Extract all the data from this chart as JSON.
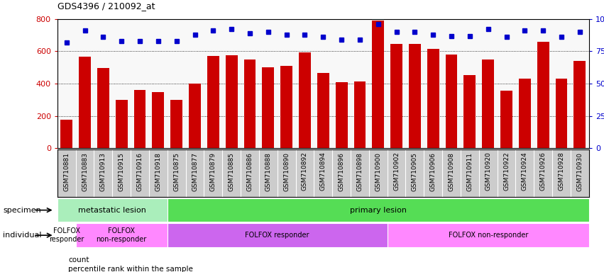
{
  "title": "GDS4396 / 210092_at",
  "samples": [
    "GSM710881",
    "GSM710883",
    "GSM710913",
    "GSM710915",
    "GSM710916",
    "GSM710918",
    "GSM710875",
    "GSM710877",
    "GSM710879",
    "GSM710885",
    "GSM710886",
    "GSM710888",
    "GSM710890",
    "GSM710892",
    "GSM710894",
    "GSM710896",
    "GSM710898",
    "GSM710900",
    "GSM710902",
    "GSM710905",
    "GSM710906",
    "GSM710908",
    "GSM710911",
    "GSM710920",
    "GSM710922",
    "GSM710924",
    "GSM710926",
    "GSM710928",
    "GSM710930"
  ],
  "counts": [
    175,
    565,
    495,
    300,
    360,
    348,
    300,
    400,
    570,
    575,
    550,
    500,
    510,
    595,
    465,
    410,
    415,
    790,
    645,
    645,
    615,
    580,
    455,
    550,
    355,
    430,
    660,
    430,
    540
  ],
  "percentile_ranks": [
    82,
    91,
    86,
    83,
    83,
    83,
    83,
    88,
    91,
    92,
    89,
    90,
    88,
    88,
    86,
    84,
    84,
    96,
    90,
    90,
    88,
    87,
    87,
    92,
    86,
    91,
    91,
    86,
    90
  ],
  "bar_color": "#cc0000",
  "dot_color": "#0000cc",
  "ylim_left": [
    0,
    800
  ],
  "ylim_right": [
    0,
    100
  ],
  "yticks_left": [
    0,
    200,
    400,
    600,
    800
  ],
  "yticks_right": [
    0,
    25,
    50,
    75,
    100
  ],
  "specimen_groups": [
    {
      "label": "metastatic lesion",
      "start": 0,
      "end": 6,
      "color": "#aaeebb"
    },
    {
      "label": "primary lesion",
      "start": 6,
      "end": 29,
      "color": "#55dd55"
    }
  ],
  "individual_groups": [
    {
      "label": "FOLFOX\nresponder",
      "start": 0,
      "end": 1,
      "color": "#ffffff"
    },
    {
      "label": "FOLFOX\nnon-responder",
      "start": 1,
      "end": 6,
      "color": "#ff88ff"
    },
    {
      "label": "FOLFOX responder",
      "start": 6,
      "end": 18,
      "color": "#cc66ee"
    },
    {
      "label": "FOLFOX non-responder",
      "start": 18,
      "end": 29,
      "color": "#ff88ff"
    }
  ],
  "legend_count_label": "count",
  "legend_pct_label": "percentile rank within the sample",
  "specimen_label": "specimen",
  "individual_label": "individual",
  "xtick_bg": "#cccccc",
  "plot_bg": "#f8f8f8",
  "grid_color": "#000000",
  "fig_bg": "#ffffff"
}
